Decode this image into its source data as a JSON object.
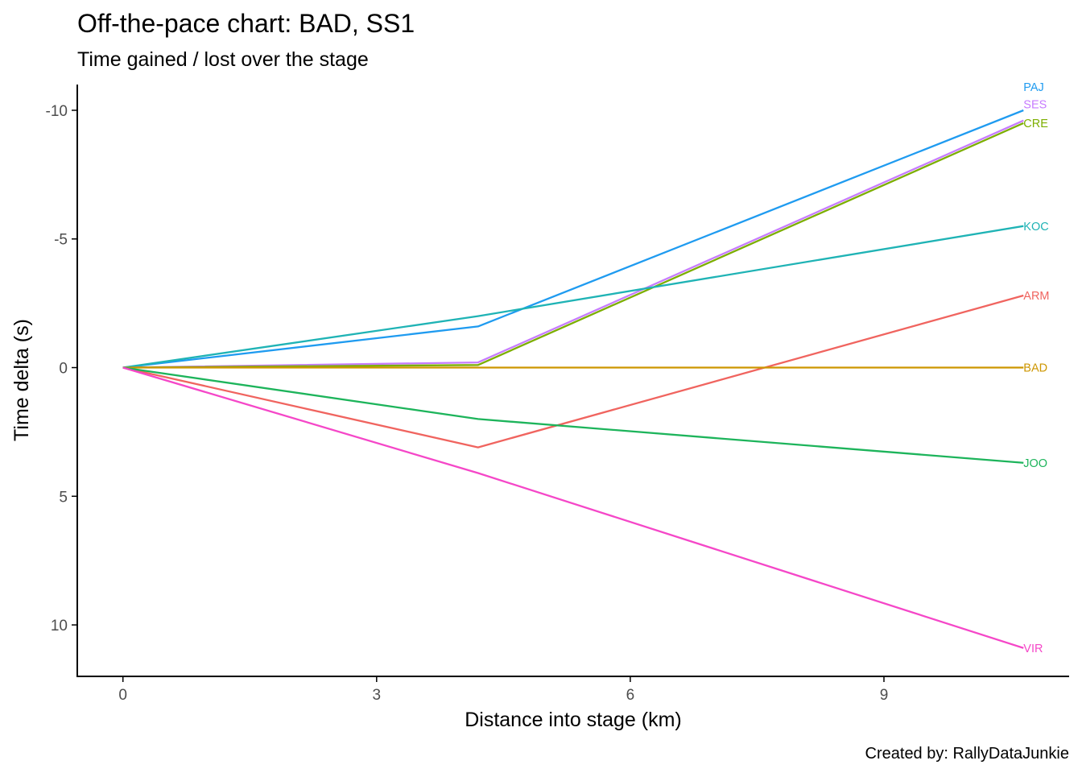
{
  "chart_data": {
    "type": "line",
    "title": "Off-the-pace chart: BAD, SS1",
    "subtitle": "Time gained / lost over the stage",
    "xlabel": "Distance into stage (km)",
    "ylabel": "Time delta (s)",
    "caption": "Created by: RallyDataJunkie",
    "x": [
      0,
      4.2,
      10.65
    ],
    "xlim": [
      -0.54,
      11.19
    ],
    "ylim": [
      -11.0,
      12.0
    ],
    "y_reversed": true,
    "x_ticks": [
      0,
      3,
      6,
      9
    ],
    "x_tick_labels": [
      "0",
      "3",
      "6",
      "9"
    ],
    "y_ticks": [
      -10,
      -5,
      0,
      5,
      10
    ],
    "y_tick_labels": [
      "-10",
      "-5",
      "0",
      "5",
      "10"
    ],
    "grid": false,
    "legend": "none (direct end labels)",
    "series": [
      {
        "name": "PAJ",
        "color": "#1f9bf0",
        "values": [
          0,
          -1.6,
          -10.0
        ]
      },
      {
        "name": "SES",
        "color": "#c77cff",
        "values": [
          0,
          -0.2,
          -9.6
        ]
      },
      {
        "name": "CRE",
        "color": "#7cae00",
        "values": [
          0,
          -0.1,
          -9.5
        ]
      },
      {
        "name": "KOC",
        "color": "#1fb3b5",
        "values": [
          0,
          -2.0,
          -5.5
        ]
      },
      {
        "name": "ARM",
        "color": "#f0645f",
        "values": [
          0,
          3.1,
          -2.8
        ]
      },
      {
        "name": "BAD",
        "color": "#cd9600",
        "values": [
          0,
          0,
          0
        ]
      },
      {
        "name": "JOO",
        "color": "#1db45b",
        "values": [
          0,
          2.0,
          3.7
        ]
      },
      {
        "name": "VIR",
        "color": "#f547c8",
        "values": [
          0,
          4.1,
          10.9
        ]
      }
    ]
  }
}
